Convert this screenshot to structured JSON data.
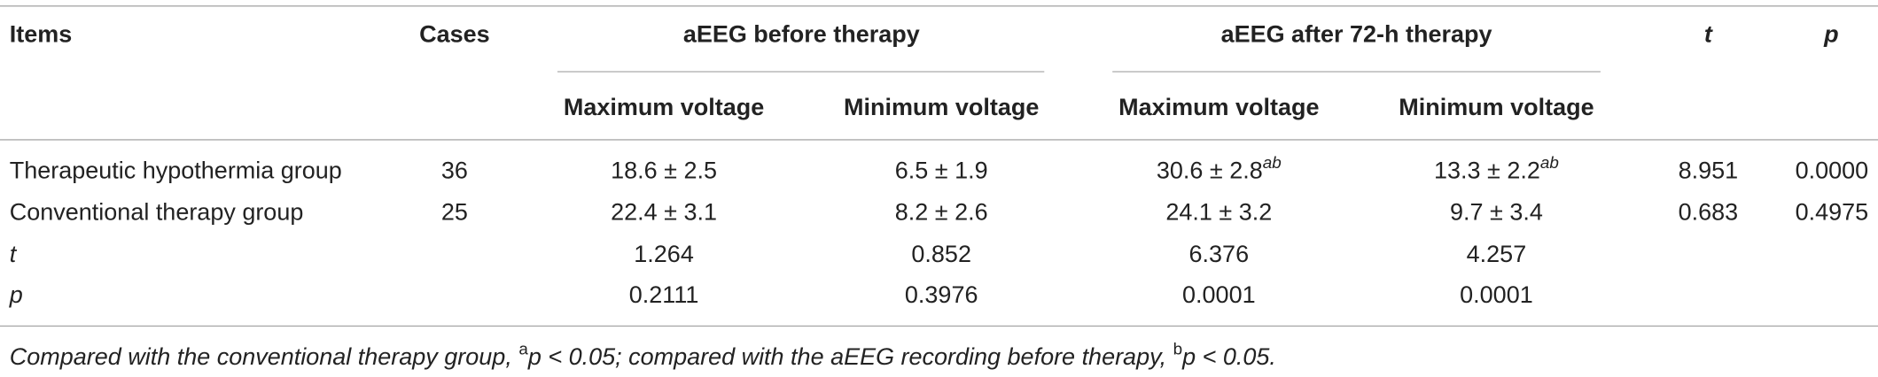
{
  "table": {
    "header": {
      "items": "Items",
      "cases": "Cases",
      "group1": "aEEG before therapy",
      "group2": "aEEG after 72-h therapy",
      "t": "t",
      "p": "p"
    },
    "subheader": [
      "Maximum voltage",
      "Minimum voltage",
      "Maximum voltage",
      "Minimum voltage"
    ],
    "rows": [
      [
        "Therapeutic hypothermia group",
        "36",
        "18.6 ± 2.5",
        "6.5 ± 1.9",
        {
          "text": "30.6 ± 2.8",
          "sup": "ab"
        },
        {
          "text": "13.3 ± 2.2",
          "sup": "ab"
        },
        "8.951",
        "0.0000"
      ],
      [
        "Conventional therapy group",
        "25",
        "22.4 ± 3.1",
        "8.2 ± 2.6",
        "24.1 ± 3.2",
        "9.7 ± 3.4",
        "0.683",
        "0.4975"
      ],
      [
        "t",
        null,
        "1.264",
        "0.852",
        "6.376",
        "4.257",
        null,
        null
      ],
      [
        "p",
        null,
        "0.2111",
        "0.3976",
        "0.0001",
        "0.0001",
        null,
        null
      ]
    ],
    "footnote": [
      {
        "text": "Compared with the conventional therapy group, "
      },
      {
        "sup": "a"
      },
      {
        "text": "p < 0.05; compared with the aEEG recording before therapy, "
      },
      {
        "sup": "b"
      },
      {
        "text": "p < 0.05."
      }
    ]
  }
}
